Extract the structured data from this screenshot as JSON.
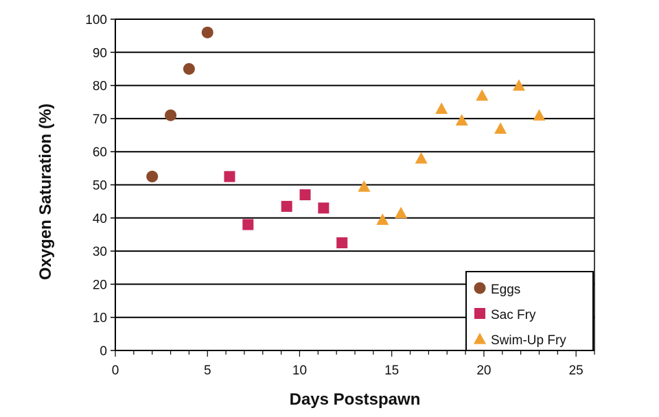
{
  "chart_data": {
    "type": "scatter",
    "xlabel": "Days Postspawn",
    "ylabel": "Oxygen Saturation (%)",
    "xlim": [
      0,
      26
    ],
    "ylim": [
      0,
      100
    ],
    "x_ticks": [
      "0",
      "5",
      "10",
      "15",
      "20",
      "25"
    ],
    "y_ticks": [
      "0",
      "10",
      "20",
      "30",
      "40",
      "50",
      "60",
      "70",
      "80",
      "90",
      "100"
    ],
    "grid": "horizontal",
    "legend_position": "bottom-right",
    "series": [
      {
        "name": "Eggs",
        "marker": "circle",
        "color": "#8B4A2B",
        "points": [
          [
            2,
            52.5
          ],
          [
            3,
            71
          ],
          [
            4,
            85
          ],
          [
            5,
            96
          ]
        ]
      },
      {
        "name": "Sac Fry",
        "marker": "square",
        "color": "#C8275A",
        "points": [
          [
            6.2,
            52.5
          ],
          [
            7.2,
            38
          ],
          [
            9.3,
            43.5
          ],
          [
            10.3,
            47
          ],
          [
            11.3,
            43
          ],
          [
            12.3,
            32.5
          ]
        ]
      },
      {
        "name": "Swim-Up Fry",
        "marker": "triangle",
        "color": "#F0A030",
        "points": [
          [
            13.5,
            49.5
          ],
          [
            14.5,
            39.5
          ],
          [
            15.5,
            41.5
          ],
          [
            16.6,
            58
          ],
          [
            17.7,
            73
          ],
          [
            18.8,
            69.5
          ],
          [
            19.9,
            77
          ],
          [
            20.9,
            67
          ],
          [
            21.9,
            80
          ],
          [
            23,
            71
          ]
        ]
      }
    ]
  }
}
